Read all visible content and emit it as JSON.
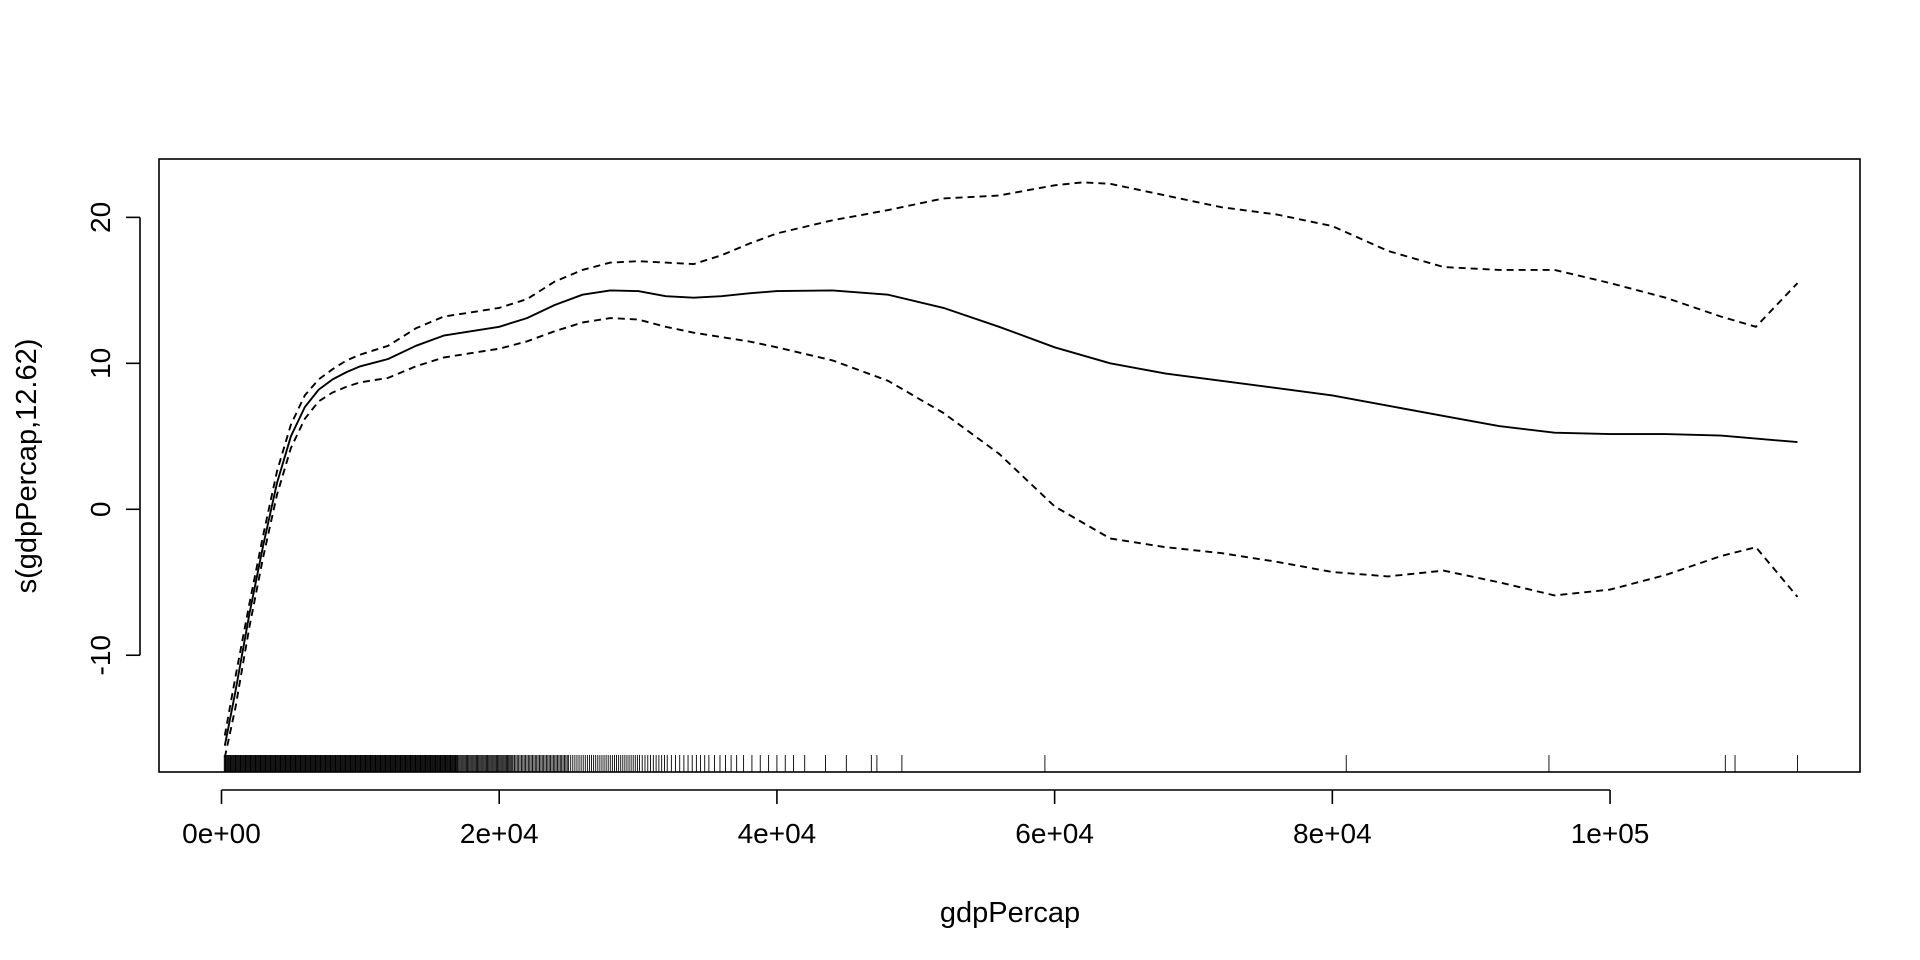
{
  "chart_data": {
    "type": "line",
    "title": "",
    "xlabel": "gdpPercap",
    "ylabel": "s(gdpPercap,12.62)",
    "xlim": [
      -4500,
      118000
    ],
    "ylim": [
      -18,
      24
    ],
    "grid": false,
    "legend": "none",
    "x_ticks": [
      {
        "value": 0,
        "label": "0e+00"
      },
      {
        "value": 20000,
        "label": "2e+04"
      },
      {
        "value": 40000,
        "label": "4e+04"
      },
      {
        "value": 60000,
        "label": "6e+04"
      },
      {
        "value": 80000,
        "label": "8e+04"
      },
      {
        "value": 100000,
        "label": "1e+05"
      }
    ],
    "y_ticks": [
      {
        "value": -10,
        "label": "-10"
      },
      {
        "value": 0,
        "label": "0"
      },
      {
        "value": 10,
        "label": "10"
      },
      {
        "value": 20,
        "label": "20"
      }
    ],
    "series": [
      {
        "style": "solid",
        "x": [
          240,
          1000,
          2000,
          3000,
          4000,
          5000,
          6000,
          7000,
          8000,
          9000,
          10000,
          12000,
          14000,
          16000,
          18000,
          20000,
          22000,
          24000,
          26000,
          28000,
          30000,
          32000,
          34000,
          36000,
          38000,
          40000,
          44000,
          48000,
          52000,
          56000,
          60000,
          64000,
          68000,
          72000,
          76000,
          80000,
          84000,
          88000,
          92000,
          96000,
          100000,
          104000,
          108000,
          113500
        ],
        "y": [
          -16.2,
          -12.5,
          -7.2,
          -2.5,
          1.8,
          5.0,
          7.0,
          8.2,
          8.9,
          9.4,
          9.8,
          10.3,
          11.2,
          11.9,
          12.2,
          12.5,
          13.1,
          14.0,
          14.7,
          15.0,
          14.95,
          14.6,
          14.5,
          14.6,
          14.8,
          14.95,
          15.0,
          14.7,
          13.8,
          12.5,
          11.1,
          10.0,
          9.3,
          8.8,
          8.3,
          7.8,
          7.1,
          6.4,
          5.7,
          5.25,
          5.15,
          5.15,
          5.05,
          4.6
        ]
      },
      {
        "style": "dashed",
        "x": [
          240,
          1000,
          2000,
          3000,
          4000,
          5000,
          6000,
          7000,
          8000,
          9000,
          10000,
          12000,
          14000,
          16000,
          18000,
          20000,
          22000,
          24000,
          26000,
          28000,
          30000,
          32000,
          34000,
          36000,
          38000,
          40000,
          44000,
          48000,
          52000,
          56000,
          60000,
          62000,
          64000,
          68000,
          72000,
          76000,
          80000,
          84000,
          88000,
          92000,
          96000,
          100000,
          104000,
          108000,
          110500,
          113500
        ],
        "y": [
          -15.5,
          -11.5,
          -6.5,
          -1.8,
          2.6,
          5.8,
          7.8,
          8.9,
          9.6,
          10.2,
          10.6,
          11.2,
          12.4,
          13.2,
          13.5,
          13.8,
          14.4,
          15.6,
          16.4,
          16.9,
          17.0,
          16.9,
          16.8,
          17.4,
          18.2,
          18.9,
          19.8,
          20.5,
          21.3,
          21.5,
          22.2,
          22.4,
          22.3,
          21.5,
          20.7,
          20.2,
          19.4,
          17.7,
          16.6,
          16.4,
          16.4,
          15.5,
          14.5,
          13.2,
          12.5,
          15.5
        ]
      },
      {
        "style": "dashed",
        "x": [
          240,
          1000,
          2000,
          3000,
          4000,
          5000,
          6000,
          7000,
          8000,
          9000,
          10000,
          12000,
          14000,
          16000,
          18000,
          20000,
          22000,
          24000,
          26000,
          28000,
          30000,
          32000,
          34000,
          36000,
          38000,
          40000,
          44000,
          48000,
          52000,
          56000,
          60000,
          64000,
          68000,
          72000,
          76000,
          80000,
          84000,
          88000,
          92000,
          96000,
          100000,
          104000,
          108000,
          110500,
          113500
        ],
        "y": [
          -17.0,
          -13.6,
          -8.1,
          -3.3,
          1.0,
          4.2,
          6.2,
          7.4,
          8.0,
          8.4,
          8.7,
          9.0,
          9.8,
          10.4,
          10.7,
          11.0,
          11.5,
          12.2,
          12.8,
          13.1,
          13.0,
          12.5,
          12.1,
          11.8,
          11.5,
          11.1,
          10.2,
          8.8,
          6.6,
          3.8,
          0.2,
          -2.0,
          -2.6,
          -3.0,
          -3.6,
          -4.3,
          -4.6,
          -4.2,
          -5.0,
          -5.9,
          -5.5,
          -4.5,
          -3.2,
          -2.6,
          -6.0
        ]
      }
    ],
    "rug_x": [
      200,
      260,
      320,
      380,
      440,
      500,
      560,
      620,
      680,
      740,
      800,
      860,
      920,
      980,
      1040,
      1100,
      1160,
      1220,
      1280,
      1340,
      1400,
      1460,
      1520,
      1580,
      1640,
      1700,
      1760,
      1820,
      1880,
      1940,
      2000,
      2060,
      2120,
      2180,
      2240,
      2300,
      2360,
      2420,
      2480,
      2540,
      2600,
      2660,
      2720,
      2780,
      2840,
      2900,
      2960,
      3020,
      3080,
      3140,
      3200,
      3260,
      3320,
      3380,
      3440,
      3500,
      3560,
      3620,
      3680,
      3740,
      3800,
      3860,
      3920,
      3980,
      4040,
      4100,
      4160,
      4220,
      4280,
      4340,
      4400,
      4460,
      4520,
      4580,
      4640,
      4700,
      4760,
      4820,
      4880,
      4940,
      5000,
      5060,
      5120,
      5180,
      5240,
      5300,
      5360,
      5420,
      5480,
      5540,
      5600,
      5660,
      5720,
      5780,
      5840,
      5900,
      5960,
      6020,
      6080,
      6140,
      6200,
      6260,
      6320,
      6380,
      6440,
      6500,
      6560,
      6620,
      6680,
      6740,
      6800,
      6860,
      6920,
      6980,
      7040,
      7100,
      7160,
      7220,
      7280,
      7340,
      7400,
      7460,
      7520,
      7580,
      7640,
      7700,
      7760,
      7820,
      7880,
      7940,
      8000,
      8060,
      8120,
      8180,
      8240,
      8300,
      8360,
      8420,
      8480,
      8540,
      8600,
      8660,
      8720,
      8780,
      8840,
      8900,
      8960,
      9020,
      9080,
      9140,
      9200,
      9260,
      9320,
      9380,
      9440,
      9500,
      9560,
      9620,
      9680,
      9740,
      9800,
      9860,
      9920,
      9980,
      10040,
      10100,
      10160,
      10220,
      10280,
      10340,
      10400,
      10460,
      10520,
      10580,
      10640,
      10700,
      10760,
      10820,
      10880,
      10940,
      11000,
      11060,
      11120,
      11180,
      11240,
      11300,
      11360,
      11420,
      11480,
      11540,
      11600,
      11660,
      11720,
      11780,
      11840,
      11900,
      11960,
      12020,
      12080,
      12140,
      12200,
      12260,
      12320,
      12380,
      12440,
      12500,
      12560,
      12620,
      12680,
      12740,
      12800,
      12860,
      12920,
      12980,
      13040,
      13100,
      13160,
      13220,
      13280,
      13340,
      13400,
      13460,
      13520,
      13580,
      13640,
      13700,
      13760,
      13820,
      13880,
      13940,
      14000,
      14060,
      14120,
      14180,
      14240,
      14300,
      14360,
      14420,
      14480,
      14540,
      14600,
      14660,
      14720,
      14780,
      14840,
      14900,
      14960,
      15020,
      15080,
      15140,
      15200,
      15260,
      15320,
      15380,
      15440,
      15500,
      15560,
      15620,
      15680,
      15740,
      15800,
      15860,
      15920,
      15980,
      16040,
      16100,
      16160,
      16220,
      16280,
      16340,
      16400,
      16460,
      16520,
      16580,
      16640,
      16700,
      16760,
      16820,
      16880,
      16940,
      17000,
      17080,
      17160,
      17240,
      17320,
      17400,
      17480,
      17560,
      17640,
      17720,
      17800,
      17880,
      17960,
      18040,
      18120,
      18200,
      18280,
      18360,
      18440,
      18520,
      18600,
      18680,
      18760,
      18840,
      18920,
      19000,
      19080,
      19160,
      19240,
      19320,
      19400,
      19480,
      19560,
      19640,
      19720,
      19800,
      19880,
      19960,
      20040,
      20120,
      20200,
      20280,
      20360,
      20440,
      20520,
      20600,
      20680,
      20760,
      20840,
      20920,
      21000,
      21100,
      21200,
      21300,
      21400,
      21500,
      21600,
      21700,
      21800,
      21900,
      22000,
      22100,
      22200,
      22300,
      22400,
      22500,
      22600,
      22700,
      22800,
      22900,
      23000,
      23100,
      23200,
      23300,
      23400,
      23500,
      23600,
      23700,
      23800,
      23900,
      24000,
      24100,
      24200,
      24300,
      24400,
      24500,
      24600,
      24700,
      24800,
      24900,
      25000,
      25150,
      25300,
      25450,
      25600,
      25750,
      25900,
      26050,
      26200,
      26350,
      26500,
      26650,
      26800,
      26950,
      27100,
      27250,
      27400,
      27550,
      27700,
      27850,
      28000,
      28150,
      28300,
      28450,
      28600,
      28750,
      28900,
      29050,
      29200,
      29350,
      29500,
      29650,
      29800,
      29950,
      30100,
      30300,
      30500,
      30700,
      30900,
      31100,
      31300,
      31500,
      31700,
      31900,
      32100,
      32400,
      32700,
      33000,
      33300,
      33600,
      33900,
      34200,
      34500,
      34800,
      35100,
      35500,
      35900,
      36300,
      36700,
      37100,
      37600,
      38200,
      38800,
      39400,
      40000,
      40600,
      41200,
      42000,
      43500,
      45000,
      46800,
      47200,
      49000,
      59300,
      81000,
      95600,
      108300,
      109000,
      113500
    ]
  }
}
